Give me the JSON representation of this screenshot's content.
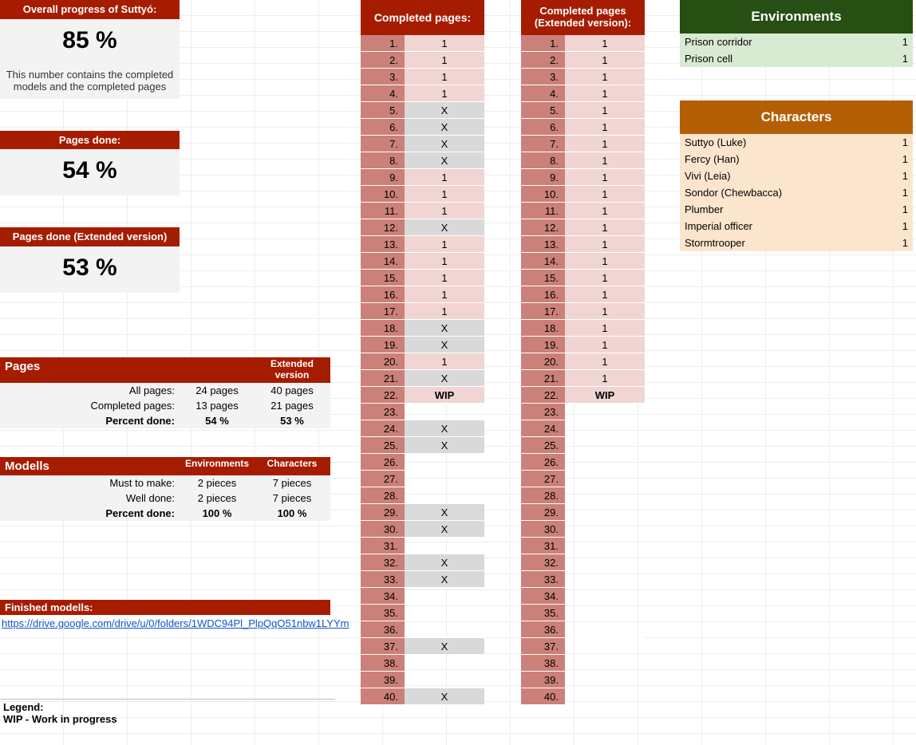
{
  "overall": {
    "title": "Overall progress of Suttyó:",
    "pct": "85 %",
    "note": "This number contains the completed models and the completed pages"
  },
  "pages_done": {
    "title": "Pages done:",
    "pct": "54 %"
  },
  "pages_done_ext": {
    "title": "Pages done (Extended version)",
    "pct": "53 %"
  },
  "pages_stats": {
    "title": "Pages",
    "col2": "",
    "col3": "Extended version",
    "rows": [
      {
        "label": "All pages:",
        "v2": "24 pages",
        "v3": "40 pages"
      },
      {
        "label": "Completed pages:",
        "v2": "13 pages",
        "v3": "21 pages"
      },
      {
        "label": "Percent done:",
        "v2": "54 %",
        "v3": "53 %"
      }
    ]
  },
  "models_stats": {
    "title": "Modells",
    "col2": "Environments",
    "col3": "Characters",
    "rows": [
      {
        "label": "Must to make:",
        "v2": "2 pieces",
        "v3": "7 pieces"
      },
      {
        "label": "Well done:",
        "v2": "2 pieces",
        "v3": "7 pieces"
      },
      {
        "label": "Percent done:",
        "v2": "100 %",
        "v3": "100 %"
      }
    ]
  },
  "finished_models": {
    "title": "Finished modells:",
    "url": "https://drive.google.com/drive/u/0/folders/1WDC94Pl_PlpQqO51nbw1LYYm"
  },
  "legend": {
    "heading": "Legend:",
    "wip": "WIP - Work in progress"
  },
  "track_std": {
    "title": "Completed pages:",
    "items": [
      "1",
      "1",
      "1",
      "1",
      "X",
      "X",
      "X",
      "X",
      "1",
      "1",
      "1",
      "X",
      "1",
      "1",
      "1",
      "1",
      "1",
      "X",
      "X",
      "1",
      "X",
      "WIP",
      "",
      "X",
      "X",
      "",
      "",
      "",
      "X",
      "X",
      "",
      "X",
      "X",
      "",
      "",
      "",
      "X",
      "",
      "",
      "X"
    ]
  },
  "track_ext": {
    "title": "Completed pages (Extended version):",
    "items": [
      "1",
      "1",
      "1",
      "1",
      "1",
      "1",
      "1",
      "1",
      "1",
      "1",
      "1",
      "1",
      "1",
      "1",
      "1",
      "1",
      "1",
      "1",
      "1",
      "1",
      "1",
      "WIP",
      "",
      "",
      "",
      "",
      "",
      "",
      "",
      "",
      "",
      "",
      "",
      "",
      "",
      "",
      "",
      "",
      "",
      ""
    ]
  },
  "environments": {
    "title": "Environments",
    "items": [
      {
        "label": "Prison corridor",
        "val": "1"
      },
      {
        "label": "Prison cell",
        "val": "1"
      }
    ]
  },
  "characters": {
    "title": "Characters",
    "items": [
      {
        "label": "Suttyo (Luke)",
        "val": "1"
      },
      {
        "label": "Fercy (Han)",
        "val": "1"
      },
      {
        "label": "Vivi (Leia)",
        "val": "1"
      },
      {
        "label": "Sondor (Chewbacca)",
        "val": "1"
      },
      {
        "label": "Plumber",
        "val": "1"
      },
      {
        "label": "Imperial officer",
        "val": "1"
      },
      {
        "label": "Stormtrooper",
        "val": "1"
      }
    ]
  },
  "colors": {
    "red_header": "#a61c00",
    "light_bg": "#f3f3f3",
    "track_num": "#cb8079",
    "v_one": "#f1d5d2",
    "v_x": "#d9d9d9",
    "env_header": "#274e13",
    "env_row": "#d9ead3",
    "char_header": "#b45f06",
    "char_row": "#fce5cd"
  }
}
